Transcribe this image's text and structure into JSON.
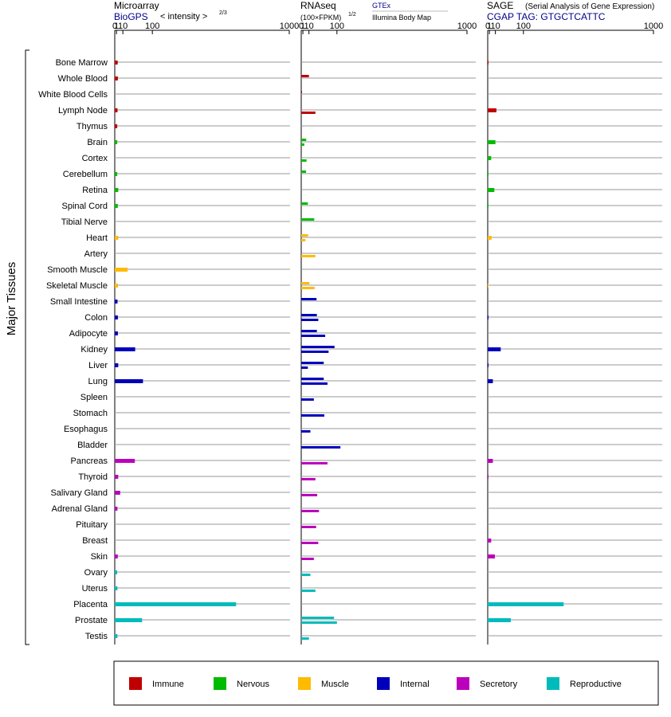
{
  "chart_data": {
    "type": "bar",
    "y_axis_label": "Major Tissues",
    "categories": [
      "Bone Marrow",
      "Whole Blood",
      "White Blood Cells",
      "Lymph Node",
      "Thymus",
      "Brain",
      "Cortex",
      "Cerebellum",
      "Retina",
      "Spinal Cord",
      "Tibial Nerve",
      "Heart",
      "Artery",
      "Smooth Muscle",
      "Skeletal Muscle",
      "Small Intestine",
      "Colon",
      "Adipocyte",
      "Kidney",
      "Liver",
      "Lung",
      "Spleen",
      "Stomach",
      "Esophagus",
      "Bladder",
      "Pancreas",
      "Thyroid",
      "Salivary Gland",
      "Adrenal Gland",
      "Pituitary",
      "Breast",
      "Skin",
      "Ovary",
      "Uterus",
      "Placenta",
      "Prostate",
      "Testis"
    ],
    "groups": [
      "immune",
      "immune",
      "immune",
      "immune",
      "immune",
      "nervous",
      "nervous",
      "nervous",
      "nervous",
      "nervous",
      "nervous",
      "muscle",
      "muscle",
      "muscle",
      "muscle",
      "internal",
      "internal",
      "internal",
      "internal",
      "internal",
      "internal",
      "internal",
      "internal",
      "internal",
      "internal",
      "secretory",
      "secretory",
      "secretory",
      "secretory",
      "secretory",
      "secretory",
      "secretory",
      "reproductive",
      "reproductive",
      "reproductive",
      "reproductive",
      "reproductive"
    ],
    "panels": [
      {
        "id": "microarray",
        "title": "Microarray",
        "source_label": "BioGPS",
        "scale_label": "< intensity >",
        "scale_exp": "2/3",
        "ticks": [
          "0",
          "1",
          "10",
          "100",
          "1000"
        ],
        "xlim": [
          0,
          1000
        ],
        "series": [
          {
            "values": [
              2.2,
              2.4,
              null,
              2.0,
              1.7,
              1.7,
              null,
              1.7,
              2.8,
              2.3,
              null,
              2.8,
              null,
              20,
              2.5,
              2.0,
              2.4,
              2.4,
              40,
              2.8,
              65,
              null,
              null,
              null,
              null,
              39,
              2.8,
              5.5,
              1.9,
              null,
              null,
              2.3,
              1.6,
              1.9,
              580,
              62,
              1.9
            ]
          }
        ]
      },
      {
        "id": "rnaseq",
        "title": "RNAseq",
        "scale_label": "(100×FPKM)",
        "scale_exp": "1/2",
        "legend_a": "GTEx",
        "legend_b": "Illumina Body Map",
        "ticks": [
          "0",
          "1",
          "10",
          "100",
          "1000"
        ],
        "xlim": [
          0,
          1000
        ],
        "series": [
          {
            "name": "GTEx",
            "values": [
              null,
              10,
              0.05,
              null,
              null,
              5.2,
              null,
              5.0,
              null,
              8.0,
              22,
              8.5,
              null,
              null,
              11,
              28,
              29,
              29,
              90,
              50,
              50,
              null,
              null,
              null,
              null,
              null,
              null,
              null,
              null,
              null,
              null,
              null,
              null,
              null,
              null,
              88,
              null
            ]
          },
          {
            "name": "Illumina Body Map",
            "values": [
              null,
              null,
              null,
              25,
              null,
              2.5,
              5.7,
              null,
              null,
              null,
              null,
              4.0,
              25,
              null,
              23,
              null,
              33,
              55,
              67,
              8.0,
              63,
              21,
              52,
              13,
              115,
              63,
              25,
              30,
              35,
              27,
              33,
              21,
              13,
              25,
              null,
              100,
              10
            ]
          }
        ]
      },
      {
        "id": "sage",
        "title": "SAGE",
        "subtitle": "(Serial Analysis of Gene Expression)",
        "source_label": "CGAP TAG: GTGCTCATTC",
        "ticks": [
          "0",
          "1",
          "10",
          "100",
          "1000"
        ],
        "xlim": [
          0,
          1000
        ],
        "series": [
          {
            "values": [
              0.05,
              null,
              null,
              12,
              null,
              10,
              3.0,
              0.05,
              8.0,
              0.05,
              null,
              3.5,
              null,
              null,
              0.02,
              null,
              0.05,
              null,
              22,
              0.05,
              5.5,
              null,
              null,
              null,
              null,
              5.5,
              0.05,
              null,
              null,
              null,
              3.0,
              9.0,
              null,
              null,
              310,
              52,
              null
            ]
          }
        ]
      }
    ],
    "legend": [
      {
        "key": "immune",
        "label": "Immune",
        "color": "#c00000"
      },
      {
        "key": "nervous",
        "label": "Nervous",
        "color": "#00bb00"
      },
      {
        "key": "muscle",
        "label": "Muscle",
        "color": "#ffbb00"
      },
      {
        "key": "internal",
        "label": "Internal",
        "color": "#0000bb"
      },
      {
        "key": "secretory",
        "label": "Secretory",
        "color": "#bb00bb"
      },
      {
        "key": "reproductive",
        "label": "Reproductive",
        "color": "#00bbbb"
      }
    ],
    "grid": "horizontal rows per tissue",
    "legend_position": "bottom"
  }
}
